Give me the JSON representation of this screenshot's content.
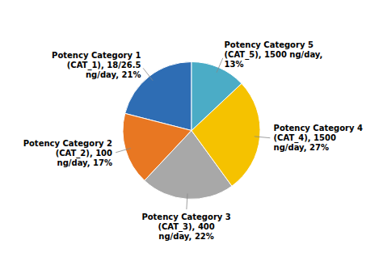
{
  "chart_data": {
    "type": "pie",
    "categories": [
      "Potency Category 1\n(CAT_1), 18/26.5\nng/day, 21%",
      "Potency Category 2\n(CAT_2), 100\nng/day, 17%",
      "Potency Category 3\n(CAT_3), 400\nng/day, 22%",
      "Potency Category 4\n(CAT_4), 1500\nng/day, 27%",
      "Potency Category 5\n(CAT_5), 1500 ng/day,\n13%"
    ],
    "values": [
      21,
      17,
      22,
      27,
      13
    ],
    "colors": [
      "#2E6DB4",
      "#E87722",
      "#A8A8A8",
      "#F5C200",
      "#4BACC6"
    ]
  }
}
